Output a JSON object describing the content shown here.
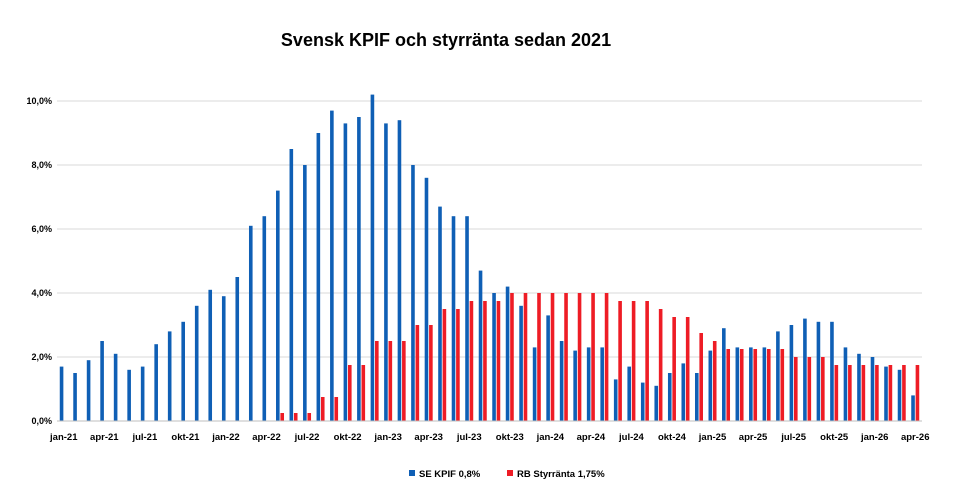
{
  "chart_data": {
    "type": "bar",
    "title": "Svensk KPIF och styrränta sedan 2021",
    "xlabel": "",
    "ylabel": "",
    "ylim": [
      0,
      10
    ],
    "yticks": [
      "0,0%",
      "2,0%",
      "4,0%",
      "6,0%",
      "8,0%",
      "10,0%"
    ],
    "grid": true,
    "legend_position": "bottom",
    "xtick_labels": [
      "jan-21",
      "apr-21",
      "jul-21",
      "okt-21",
      "jan-22",
      "apr-22",
      "jul-22",
      "okt-22",
      "jan-23",
      "apr-23",
      "jul-23",
      "okt-23",
      "jan-24",
      "apr-24",
      "jul-24",
      "okt-24",
      "jan-25",
      "apr-25",
      "jul-25",
      "okt-25",
      "jan-26",
      "apr-26"
    ],
    "categories": [
      "jan-21",
      "feb-21",
      "mar-21",
      "apr-21",
      "maj-21",
      "jun-21",
      "jul-21",
      "aug-21",
      "sep-21",
      "okt-21",
      "nov-21",
      "dec-21",
      "jan-22",
      "feb-22",
      "mar-22",
      "apr-22",
      "maj-22",
      "jun-22",
      "jul-22",
      "aug-22",
      "sep-22",
      "okt-22",
      "nov-22",
      "dec-22",
      "jan-23",
      "feb-23",
      "mar-23",
      "apr-23",
      "maj-23",
      "jun-23",
      "jul-23",
      "aug-23",
      "sep-23",
      "okt-23",
      "nov-23",
      "dec-23",
      "jan-24",
      "feb-24",
      "mar-24",
      "apr-24",
      "maj-24",
      "jun-24",
      "jul-24",
      "aug-24",
      "sep-24",
      "okt-24",
      "nov-24",
      "dec-24",
      "jan-25",
      "feb-25",
      "mar-25",
      "apr-25",
      "maj-25",
      "jun-25",
      "jul-25",
      "aug-25",
      "sep-25",
      "okt-25",
      "nov-25",
      "dec-25",
      "jan-26",
      "feb-26",
      "mar-26",
      "apr-26"
    ],
    "series": [
      {
        "name": "SE KPIF 0,8%",
        "color": "#0f5fb5",
        "values": [
          1.7,
          1.5,
          1.9,
          2.5,
          2.1,
          1.6,
          1.7,
          2.4,
          2.8,
          3.1,
          3.6,
          4.1,
          3.9,
          4.5,
          6.1,
          6.4,
          7.2,
          8.5,
          8.0,
          9.0,
          9.7,
          9.3,
          9.5,
          10.2,
          9.3,
          9.4,
          8.0,
          7.6,
          6.7,
          6.4,
          6.4,
          4.7,
          4.0,
          4.2,
          3.6,
          2.3,
          3.3,
          2.5,
          2.2,
          2.3,
          2.3,
          1.3,
          1.7,
          1.2,
          1.1,
          1.5,
          1.8,
          1.5,
          2.2,
          2.9,
          2.3,
          2.3,
          2.3,
          2.8,
          3.0,
          3.2,
          3.1,
          3.1,
          2.3,
          2.1,
          2.0,
          1.7,
          1.6,
          0.8
        ]
      },
      {
        "name": "RB Styrränta 1,75%",
        "color": "#ee1c25",
        "values": [
          0,
          0,
          0,
          0,
          0,
          0,
          0,
          0,
          0,
          0,
          0,
          0,
          0,
          0,
          0,
          0,
          0.25,
          0.25,
          0.25,
          0.75,
          0.75,
          1.75,
          1.75,
          2.5,
          2.5,
          2.5,
          3.0,
          3.0,
          3.5,
          3.5,
          3.75,
          3.75,
          3.75,
          4.0,
          4.0,
          4.0,
          4.0,
          4.0,
          4.0,
          4.0,
          4.0,
          3.75,
          3.75,
          3.75,
          3.5,
          3.25,
          3.25,
          2.75,
          2.5,
          2.25,
          2.25,
          2.25,
          2.25,
          2.25,
          2.0,
          2.0,
          2.0,
          1.75,
          1.75,
          1.75,
          1.75,
          1.75,
          1.75,
          1.75
        ]
      }
    ]
  }
}
